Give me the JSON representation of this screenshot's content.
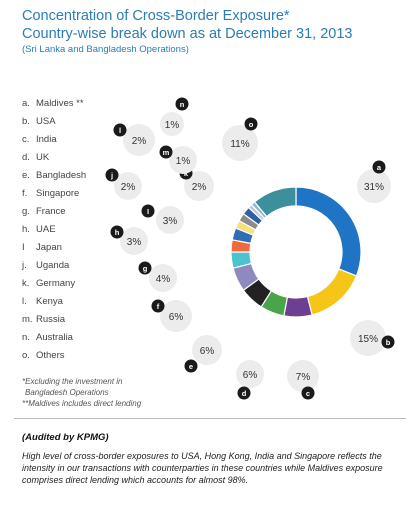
{
  "title_line1": "Concentration of Cross-Border Exposure*",
  "title_line2": "Country-wise break down as at December 31, 2013",
  "subtitle": "(Sri Lanka and Bangladesh Operations)",
  "legend": [
    {
      "key": "a.",
      "label": "Maldives **"
    },
    {
      "key": "b.",
      "label": "USA"
    },
    {
      "key": "c.",
      "label": "India"
    },
    {
      "key": "d.",
      "label": "UK"
    },
    {
      "key": "e.",
      "label": "Bangladesh"
    },
    {
      "key": "f.",
      "label": "Singapore"
    },
    {
      "key": "g.",
      "label": "France"
    },
    {
      "key": "h.",
      "label": "UAE"
    },
    {
      "key": "I",
      "label": "Japan"
    },
    {
      "key": "j.",
      "label": "Uganda"
    },
    {
      "key": "k.",
      "label": "Germany"
    },
    {
      "key": "l.",
      "label": "Kenya"
    },
    {
      "key": "m.",
      "label": "Russia"
    },
    {
      "key": "n.",
      "label": "Australia"
    },
    {
      "key": "o.",
      "label": "Others"
    }
  ],
  "notes": {
    "line1": "*Excluding the investment in",
    "line2": "Bangladesh Operations",
    "line3": "**Maldives includes direct lending"
  },
  "audited": "(Audited by KPMG)",
  "commentary": "High level of cross-border exposures to USA, Hong Kong, India and Singapore reflects the intensity in our transactions with counterparties in these countries while Maldives exposure comprises direct lending which accounts for almost 98%.",
  "chart_data": {
    "type": "donut",
    "title": "Concentration of Cross-Border Exposure*",
    "subtitle": "Country-wise break down as at December 31, 2013",
    "legend_placement": "left",
    "slices": [
      {
        "key": "a",
        "label": "Maldives **",
        "value": 31,
        "value_label": "31%",
        "color": "#1f74c6"
      },
      {
        "key": "b",
        "label": "USA",
        "value": 15,
        "value_label": "15%",
        "color": "#f5c518"
      },
      {
        "key": "c",
        "label": "India",
        "value": 7,
        "value_label": "7%",
        "color": "#6c3f93"
      },
      {
        "key": "d",
        "label": "UK",
        "value": 6,
        "value_label": "6%",
        "color": "#4aa548"
      },
      {
        "key": "e",
        "label": "Bangladesh",
        "value": 6,
        "value_label": "6%",
        "color": "#222222"
      },
      {
        "key": "f",
        "label": "Singapore",
        "value": 6,
        "value_label": "6%",
        "color": "#8e8ac0"
      },
      {
        "key": "g",
        "label": "France",
        "value": 4,
        "value_label": "4%",
        "color": "#4cc4cf"
      },
      {
        "key": "h",
        "label": "UAE",
        "value": 3,
        "value_label": "3%",
        "color": "#ee6a3c"
      },
      {
        "key": "I",
        "label": "Japan",
        "value": 3,
        "value_label": "3%",
        "color": "#2f6eb2"
      },
      {
        "key": "j",
        "label": "Uganda",
        "value": 2,
        "value_label": "2%",
        "color": "#f2e37a"
      },
      {
        "key": "k",
        "label": "Germany",
        "value": 2,
        "value_label": "2%",
        "color": "#8c8c8c"
      },
      {
        "key": "l",
        "label": "Kenya",
        "value": 2,
        "value_label": "2%",
        "color": "#2f5fa8"
      },
      {
        "key": "m",
        "label": "Russia",
        "value": 1,
        "value_label": "1%",
        "color": "#c8c8c8"
      },
      {
        "key": "n",
        "label": "Australia",
        "value": 1,
        "value_label": "1%",
        "color": "#8fb6de"
      },
      {
        "key": "o",
        "label": "Others",
        "value": 11,
        "value_label": "11%",
        "color": "#3e8f9c"
      }
    ]
  }
}
